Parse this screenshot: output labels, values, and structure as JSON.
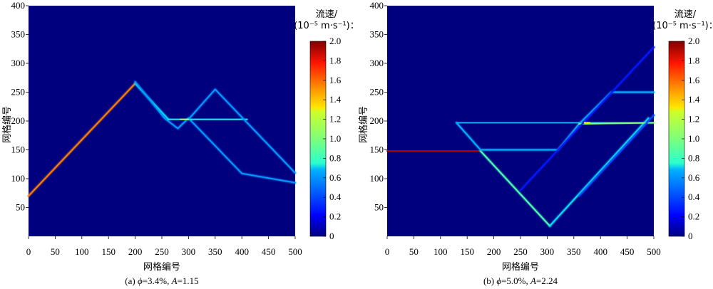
{
  "colorbar": {
    "title_line1": "流速/",
    "title_line2": "(10⁻⁵ m·s⁻¹)：",
    "ticks": [
      "0",
      "0.2",
      "0.4",
      "0.6",
      "0.8",
      "1.0",
      "1.2",
      "1.4",
      "1.6",
      "1.8",
      "2.0"
    ],
    "range": [
      0,
      2.0
    ],
    "colormap": "jet"
  },
  "chart_data": [
    {
      "type": "heatmap",
      "caption_prefix": "(a) ",
      "caption_phi": "ϕ",
      "caption_mid": "=3.4%, ",
      "caption_A": "A",
      "caption_end": "=1.15",
      "xlabel": "网格编号",
      "ylabel": "网格编号",
      "xlim": [
        0,
        500
      ],
      "ylim": [
        0,
        400
      ],
      "xticks": [
        "0",
        "50",
        "100",
        "150",
        "200",
        "250",
        "300",
        "350",
        "400",
        "450",
        "500"
      ],
      "yticks": [
        "50",
        "100",
        "150",
        "200",
        "250",
        "300",
        "350",
        "400"
      ],
      "background_value": 0,
      "paths": [
        {
          "points": [
            [
              0,
              70
            ],
            [
              200,
              265
            ]
          ],
          "value": 1.5
        },
        {
          "points": [
            [
              200,
              265
            ],
            [
              262,
              203
            ]
          ],
          "value": 0.7
        },
        {
          "points": [
            [
              200,
              268
            ],
            [
              255,
              205
            ],
            [
              280,
              187
            ],
            [
              300,
              205
            ],
            [
              400,
              109
            ],
            [
              500,
              93
            ]
          ],
          "value": 0.55
        },
        {
          "points": [
            [
              262,
              203
            ],
            [
              300,
              203
            ],
            [
              410,
              203
            ]
          ],
          "value": 0.75
        },
        {
          "points": [
            [
              300,
              203
            ],
            [
              350,
              255
            ],
            [
              500,
              110
            ]
          ],
          "value": 0.55
        },
        {
          "points": [
            [
              285,
              203
            ],
            [
              300,
              203
            ]
          ],
          "value": 1.1
        }
      ]
    },
    {
      "type": "heatmap",
      "caption_prefix": "(b) ",
      "caption_phi": "ϕ",
      "caption_mid": "=5.0%, ",
      "caption_A": "A",
      "caption_end": "=2.24",
      "xlabel": "网格编号",
      "ylabel": "网格编号",
      "xlim": [
        0,
        500
      ],
      "ylim": [
        0,
        400
      ],
      "xticks": [
        "0",
        "50",
        "100",
        "150",
        "200",
        "250",
        "300",
        "350",
        "400",
        "450",
        "500"
      ],
      "yticks": [
        "50",
        "100",
        "150",
        "200",
        "250",
        "300",
        "350",
        "400"
      ],
      "background_value": 0,
      "paths": [
        {
          "points": [
            [
              0,
              148
            ],
            [
              175,
              148
            ]
          ],
          "value": 1.9
        },
        {
          "points": [
            [
              175,
              148
            ],
            [
              305,
              18
            ]
          ],
          "value": 0.9
        },
        {
          "points": [
            [
              305,
              18
            ],
            [
              490,
              205
            ]
          ],
          "value": 0.7
        },
        {
          "points": [
            [
              130,
              197
            ],
            [
              145,
              197
            ],
            [
              500,
              197
            ]
          ],
          "value": 0.6
        },
        {
          "points": [
            [
              130,
              197
            ],
            [
              175,
              150
            ],
            [
              320,
              150
            ],
            [
              360,
              195
            ],
            [
              420,
              250
            ],
            [
              500,
              250
            ]
          ],
          "value": 0.6
        },
        {
          "points": [
            [
              360,
              195
            ],
            [
              500,
              197
            ]
          ],
          "value": 1.0
        },
        {
          "points": [
            [
              250,
              80
            ],
            [
              500,
              328
            ]
          ],
          "value": 0.3
        },
        {
          "points": [
            [
              360,
              70
            ],
            [
              500,
              210
            ]
          ],
          "value": 0.4
        },
        {
          "points": [
            [
              370,
              197
            ],
            [
              380,
              197
            ]
          ],
          "value": 1.2
        }
      ]
    }
  ]
}
